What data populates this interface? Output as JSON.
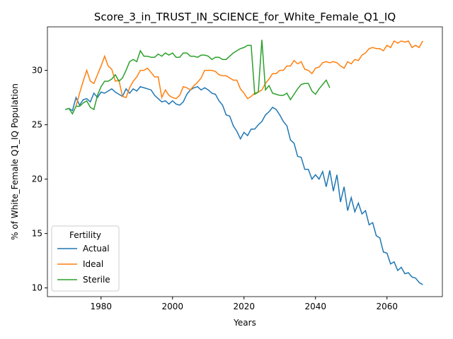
{
  "chart_data": {
    "type": "line",
    "title": "Score_3_in_TRUST_IN_SCIENCE_for_White_Female_Q1_IQ",
    "x_label": "Years",
    "y_label": "% of White_Female Q1_IQ Population",
    "legend_title": "Fertility",
    "legend_position": "lower left",
    "x": [
      1970,
      1971,
      1972,
      1973,
      1974,
      1975,
      1976,
      1977,
      1978,
      1979,
      1980,
      1981,
      1982,
      1983,
      1984,
      1985,
      1986,
      1987,
      1988,
      1989,
      1990,
      1991,
      1992,
      1993,
      1994,
      1995,
      1996,
      1997,
      1998,
      1999,
      2000,
      2001,
      2002,
      2003,
      2004,
      2005,
      2006,
      2007,
      2008,
      2009,
      2010,
      2011,
      2012,
      2013,
      2014,
      2015,
      2016,
      2017,
      2018,
      2019,
      2020,
      2021,
      2022,
      2023,
      2024,
      2025,
      2026,
      2027,
      2028,
      2029,
      2030,
      2031,
      2032,
      2033,
      2034,
      2035,
      2036,
      2037,
      2038,
      2039,
      2040,
      2041,
      2042,
      2043,
      2044,
      2045,
      2046,
      2047,
      2048,
      2049,
      2050,
      2051,
      2052,
      2053,
      2054,
      2055,
      2056,
      2057,
      2058,
      2059,
      2060,
      2061,
      2062,
      2063,
      2064,
      2065,
      2066,
      2067,
      2068,
      2069,
      2070
    ],
    "series": [
      {
        "name": "Actual",
        "color": "#1f77b4",
        "values": [
          26.4,
          26.5,
          26.3,
          27.5,
          26.8,
          27.3,
          27.4,
          27.1,
          27.9,
          27.5,
          28.0,
          27.9,
          28.1,
          28.3,
          28.0,
          27.8,
          27.6,
          28.3,
          27.9,
          28.3,
          28.1,
          28.5,
          28.4,
          28.3,
          28.2,
          27.7,
          27.4,
          27.1,
          27.2,
          26.9,
          27.2,
          26.9,
          26.8,
          27.1,
          27.8,
          28.2,
          28.4,
          28.5,
          28.2,
          28.4,
          28.2,
          27.9,
          27.8,
          27.2,
          26.8,
          25.9,
          25.8,
          24.9,
          24.4,
          23.7,
          24.3,
          24.0,
          24.6,
          24.6,
          25.0,
          25.3,
          25.9,
          26.2,
          26.6,
          26.4,
          25.9,
          25.3,
          24.9,
          23.6,
          23.3,
          22.1,
          22.0,
          20.9,
          20.9,
          20.0,
          20.4,
          20.0,
          20.7,
          19.3,
          20.8,
          18.9,
          20.4,
          17.9,
          19.3,
          17.1,
          18.3,
          17.0,
          17.8,
          16.8,
          17.1,
          15.8,
          16.0,
          14.8,
          14.6,
          13.3,
          13.2,
          12.2,
          12.4,
          11.6,
          11.9,
          11.3,
          11.4,
          11.0,
          10.9,
          10.5,
          10.3
        ]
      },
      {
        "name": "Ideal",
        "color": "#ff7f0e",
        "values": [
          null,
          null,
          null,
          26.7,
          27.9,
          29.0,
          30.0,
          29.0,
          28.8,
          29.6,
          30.4,
          31.3,
          30.4,
          30.1,
          29.0,
          29.1,
          27.6,
          27.5,
          28.4,
          29.0,
          29.4,
          30.0,
          30.0,
          30.2,
          29.8,
          29.4,
          29.4,
          27.5,
          28.2,
          27.7,
          27.5,
          27.4,
          27.7,
          28.5,
          28.4,
          28.2,
          28.6,
          28.9,
          29.3,
          30.0,
          30.0,
          30.0,
          29.9,
          29.6,
          29.5,
          29.5,
          29.3,
          29.1,
          29.1,
          28.3,
          27.9,
          27.4,
          27.6,
          27.9,
          28.0,
          28.2,
          28.8,
          29.2,
          29.7,
          29.7,
          30.0,
          30.0,
          30.4,
          30.4,
          30.9,
          30.6,
          30.8,
          30.1,
          30.0,
          29.7,
          30.2,
          30.3,
          30.7,
          30.8,
          30.7,
          30.8,
          30.7,
          30.4,
          30.2,
          30.8,
          30.6,
          31.0,
          30.9,
          31.4,
          31.6,
          32.0,
          32.1,
          32.0,
          32.0,
          31.8,
          32.3,
          32.1,
          32.7,
          32.5,
          32.7,
          32.6,
          32.7,
          32.1,
          32.3,
          32.1,
          32.7
        ]
      },
      {
        "name": "Sterile",
        "color": "#2ca02c",
        "values": [
          26.4,
          26.5,
          26.0,
          26.7,
          26.7,
          27.0,
          27.2,
          26.6,
          26.4,
          27.7,
          28.5,
          29.0,
          29.0,
          29.2,
          29.6,
          29.0,
          29.3,
          30.0,
          30.8,
          31.0,
          30.8,
          31.8,
          31.3,
          31.3,
          31.2,
          31.2,
          31.5,
          31.3,
          31.6,
          31.4,
          31.6,
          31.2,
          31.2,
          31.6,
          31.6,
          31.3,
          31.3,
          31.2,
          31.4,
          31.4,
          31.3,
          31.0,
          31.2,
          31.2,
          31.0,
          31.0,
          31.3,
          31.6,
          31.8,
          32.0,
          32.1,
          32.3,
          32.3,
          27.8,
          28.0,
          32.8,
          28.2,
          28.6,
          27.9,
          27.8,
          27.7,
          27.7,
          27.9,
          27.3,
          27.8,
          28.3,
          28.7,
          28.8,
          28.8,
          28.1,
          27.8,
          28.3,
          28.7,
          29.1,
          28.4,
          null,
          null,
          null,
          null,
          null,
          null,
          null,
          null,
          null,
          null,
          null,
          null,
          null,
          null,
          null,
          null,
          null,
          null,
          null,
          null,
          null,
          null,
          null,
          null,
          null,
          null
        ]
      }
    ],
    "xlim": [
      1965,
      2075.5
    ],
    "ylim": [
      9.2,
      34.0
    ],
    "xticks": [
      1980,
      2000,
      2020,
      2040,
      2060
    ],
    "yticks": [
      10,
      15,
      20,
      25,
      30
    ]
  }
}
